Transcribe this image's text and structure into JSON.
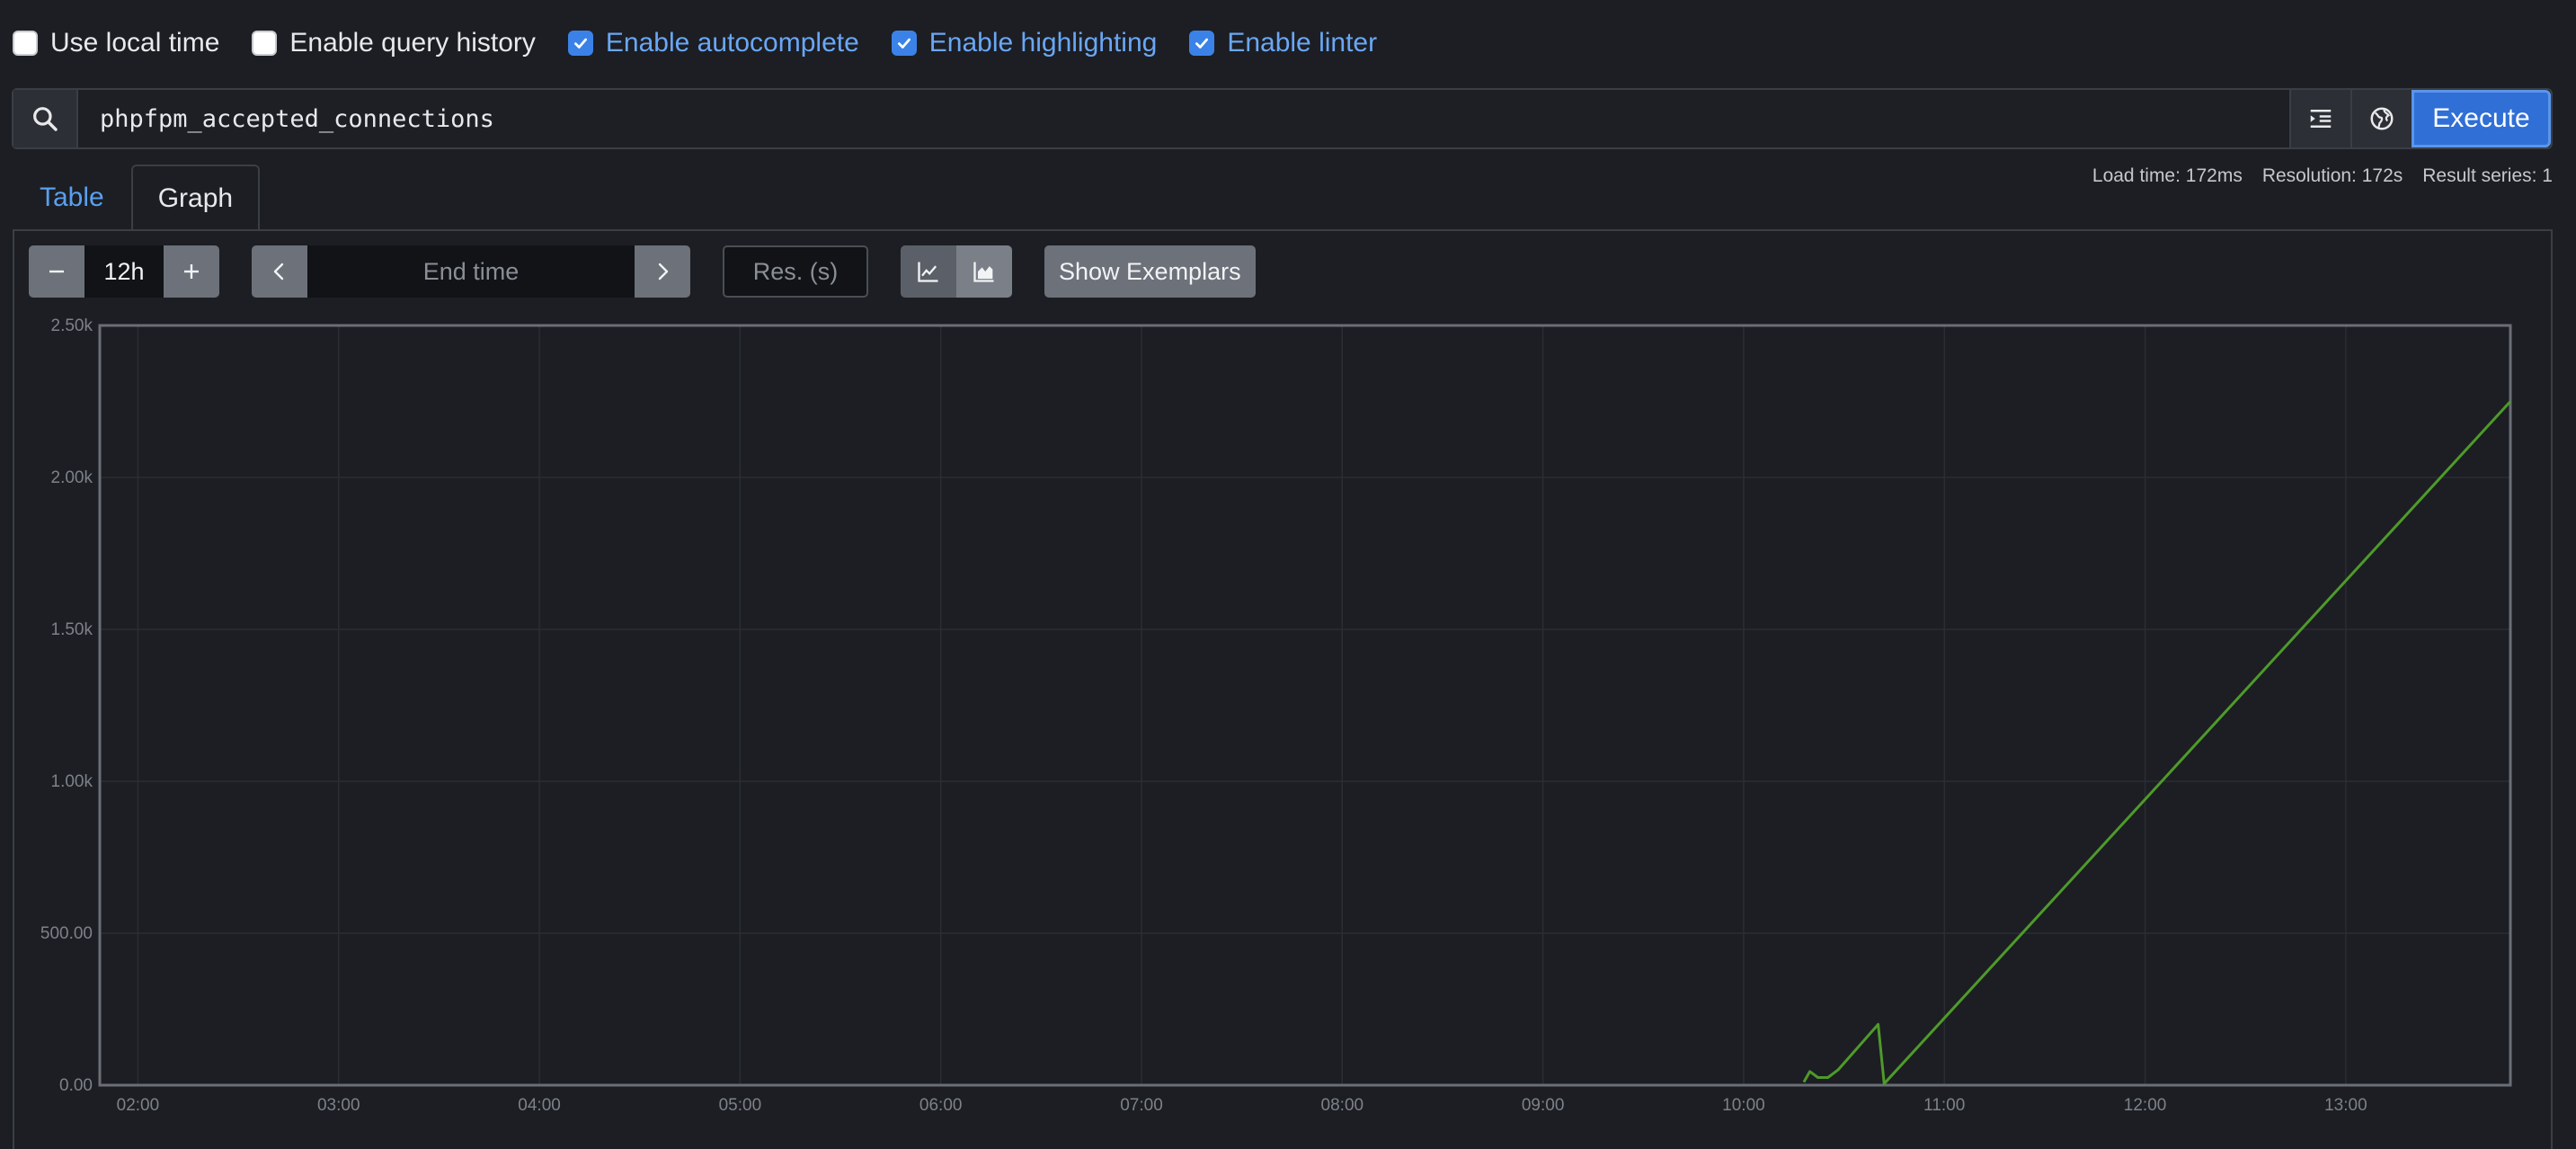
{
  "options": [
    {
      "label": "Use local time",
      "checked": false
    },
    {
      "label": "Enable query history",
      "checked": false
    },
    {
      "label": "Enable autocomplete",
      "checked": true
    },
    {
      "label": "Enable highlighting",
      "checked": true
    },
    {
      "label": "Enable linter",
      "checked": true
    }
  ],
  "query": {
    "expression": "phpfpm_accepted_connections",
    "execute_label": "Execute"
  },
  "tabs": [
    {
      "label": "Table",
      "active": false
    },
    {
      "label": "Graph",
      "active": true
    }
  ],
  "stats": {
    "load_time": "Load time: 172ms",
    "resolution": "Resolution: 172s",
    "result_series": "Result series: 1"
  },
  "graph_controls": {
    "range": "12h",
    "minus_label": "−",
    "plus_label": "+",
    "end_time_placeholder": "End time",
    "resolution_placeholder": "Res. (s)",
    "exemplars_label": "Show Exemplars"
  },
  "colors": {
    "series": "#4e9a2a",
    "accent": "#3b82e8"
  },
  "chart_data": {
    "type": "line",
    "ylim": [
      0,
      2500
    ],
    "y_ticks": [
      "0.00",
      "500.00",
      "1.00k",
      "1.50k",
      "2.00k",
      "2.50k"
    ],
    "y_tick_values": [
      0,
      500,
      1000,
      1500,
      2000,
      2500
    ],
    "xlim": [
      1.81,
      13.82
    ],
    "x_ticks": [
      "02:00",
      "03:00",
      "04:00",
      "05:00",
      "06:00",
      "07:00",
      "08:00",
      "09:00",
      "10:00",
      "11:00",
      "12:00",
      "13:00"
    ],
    "x_tick_values": [
      2,
      3,
      4,
      5,
      6,
      7,
      8,
      9,
      10,
      11,
      12,
      13
    ],
    "grid": true,
    "series": [
      {
        "x": [
          10.3,
          10.33,
          10.37,
          10.42,
          10.47,
          10.67,
          10.7,
          13.82
        ],
        "y": [
          10,
          45,
          25,
          25,
          50,
          200,
          5,
          2250
        ]
      }
    ]
  }
}
